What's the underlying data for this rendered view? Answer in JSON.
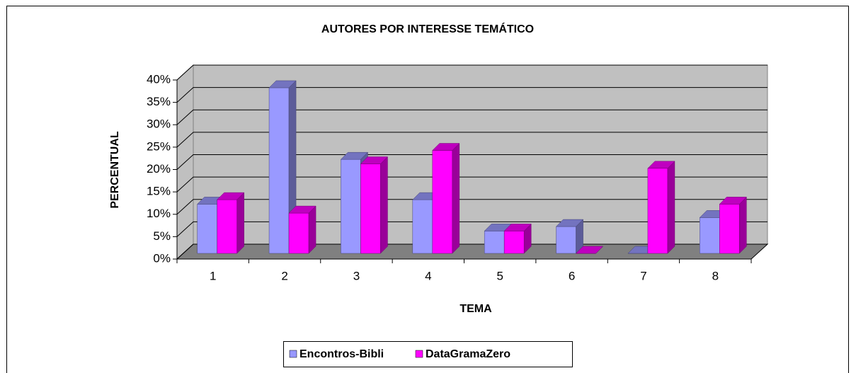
{
  "chart_data": {
    "type": "bar3d",
    "title": "AUTORES POR INTERESSE TEMÁTICO",
    "x_label": "TEMA",
    "y_label": "PERCENTUAL",
    "categories": [
      "1",
      "2",
      "3",
      "4",
      "5",
      "6",
      "7",
      "8"
    ],
    "series": [
      {
        "name": "Encontros-Bibli",
        "color": "#9999ff",
        "values": [
          11,
          37,
          21,
          12,
          5,
          6,
          0,
          8
        ]
      },
      {
        "name": "DataGramaZero",
        "color": "#ff00ff",
        "values": [
          12,
          9,
          20,
          23,
          5,
          0,
          19,
          11
        ]
      }
    ],
    "ylim": [
      0,
      40
    ],
    "yticks": [
      {
        "value": 0,
        "label": "0%"
      },
      {
        "value": 5,
        "label": "5%"
      },
      {
        "value": 10,
        "label": "10%"
      },
      {
        "value": 15,
        "label": "15%"
      },
      {
        "value": 20,
        "label": "20%"
      },
      {
        "value": 25,
        "label": "25%"
      },
      {
        "value": 30,
        "label": "30%"
      },
      {
        "value": 35,
        "label": "35%"
      },
      {
        "value": 40,
        "label": "40%"
      }
    ],
    "grid": true,
    "legend": "bottom"
  }
}
